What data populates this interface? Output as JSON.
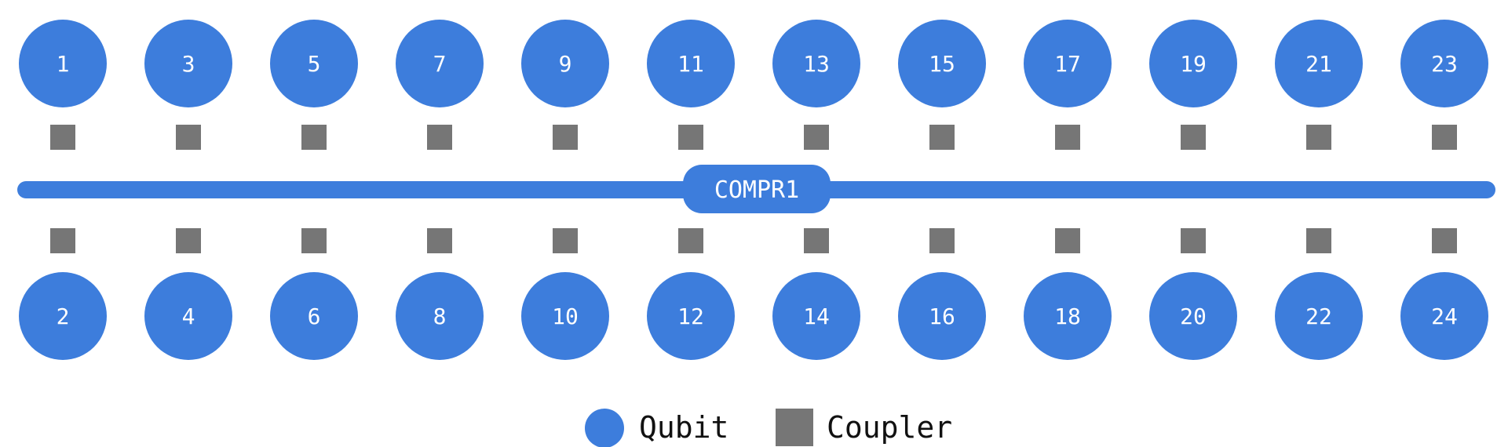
{
  "diagram": {
    "bus": {
      "label": "COMPR1"
    },
    "top_qubits": [
      "1",
      "3",
      "5",
      "7",
      "9",
      "11",
      "13",
      "15",
      "17",
      "19",
      "21",
      "23"
    ],
    "bottom_qubits": [
      "2",
      "4",
      "6",
      "8",
      "10",
      "12",
      "14",
      "16",
      "18",
      "20",
      "22",
      "24"
    ],
    "legend": {
      "qubit_label": "Qubit",
      "coupler_label": "Coupler"
    }
  },
  "colors": {
    "qubit": "#3d7ddc",
    "coupler": "#767676",
    "bus": "#3d7ddc",
    "label": "#ffffff",
    "legend_text": "#111111"
  }
}
